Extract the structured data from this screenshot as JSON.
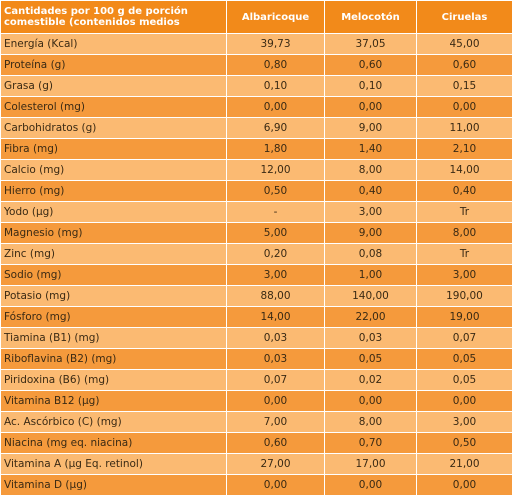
{
  "table": {
    "header": {
      "first_line1": "Cantidades por 100 g de porción",
      "first_line2": "comestible (contenidos medios",
      "col1": "Albaricoque",
      "col2": "Melocotón",
      "col3": "Ciruelas"
    },
    "rows": [
      {
        "label": "Energía (Kcal)",
        "v1": "39,73",
        "v2": "37,05",
        "v3": "45,00"
      },
      {
        "label": "Proteína (g)",
        "v1": "0,80",
        "v2": "0,60",
        "v3": "0,60"
      },
      {
        "label": "Grasa (g)",
        "v1": "0,10",
        "v2": "0,10",
        "v3": "0,15"
      },
      {
        "label": "Colesterol (mg)",
        "v1": "0,00",
        "v2": "0,00",
        "v3": "0,00"
      },
      {
        "label": "Carbohidratos (g)",
        "v1": "6,90",
        "v2": "9,00",
        "v3": "11,00"
      },
      {
        "label": "Fibra (mg)",
        "v1": "1,80",
        "v2": "1,40",
        "v3": "2,10"
      },
      {
        "label": "Calcio (mg)",
        "v1": "12,00",
        "v2": "8,00",
        "v3": "14,00"
      },
      {
        "label": "Hierro (mg)",
        "v1": "0,50",
        "v2": "0,40",
        "v3": "0,40"
      },
      {
        "label": "Yodo (µg)",
        "v1": "-",
        "v2": "3,00",
        "v3": "Tr"
      },
      {
        "label": "Magnesio (mg)",
        "v1": "5,00",
        "v2": "9,00",
        "v3": "8,00"
      },
      {
        "label": "Zinc (mg)",
        "v1": "0,20",
        "v2": "0,08",
        "v3": "Tr"
      },
      {
        "label": "Sodio (mg)",
        "v1": "3,00",
        "v2": "1,00",
        "v3": "3,00"
      },
      {
        "label": "Potasio (mg)",
        "v1": "88,00",
        "v2": "140,00",
        "v3": "190,00"
      },
      {
        "label": "Fósforo (mg)",
        "v1": "14,00",
        "v2": "22,00",
        "v3": "19,00"
      },
      {
        "label": "Tiamina (B1) (mg)",
        "v1": "0,03",
        "v2": "0,03",
        "v3": "0,07"
      },
      {
        "label": "Riboflavina (B2) (mg)",
        "v1": "0,03",
        "v2": "0,05",
        "v3": "0,05"
      },
      {
        "label": "Piridoxina (B6) (mg)",
        "v1": "0,07",
        "v2": "0,02",
        "v3": "0,05"
      },
      {
        "label": "Vitamina B12 (µg)",
        "v1": "0,00",
        "v2": "0,00",
        "v3": "0,00"
      },
      {
        "label": "Ac. Ascórbico (C) (mg)",
        "v1": "7,00",
        "v2": "8,00",
        "v3": "3,00"
      },
      {
        "label": "Niacina (mg eq. niacina)",
        "v1": "0,60",
        "v2": "0,70",
        "v3": "0,50"
      },
      {
        "label": "Vitamina A (µg Eq. retinol)",
        "v1": "27,00",
        "v2": "17,00",
        "v3": "21,00"
      },
      {
        "label": "Vitamina D (µg)",
        "v1": "0,00",
        "v2": "0,00",
        "v3": "0,00"
      }
    ]
  }
}
